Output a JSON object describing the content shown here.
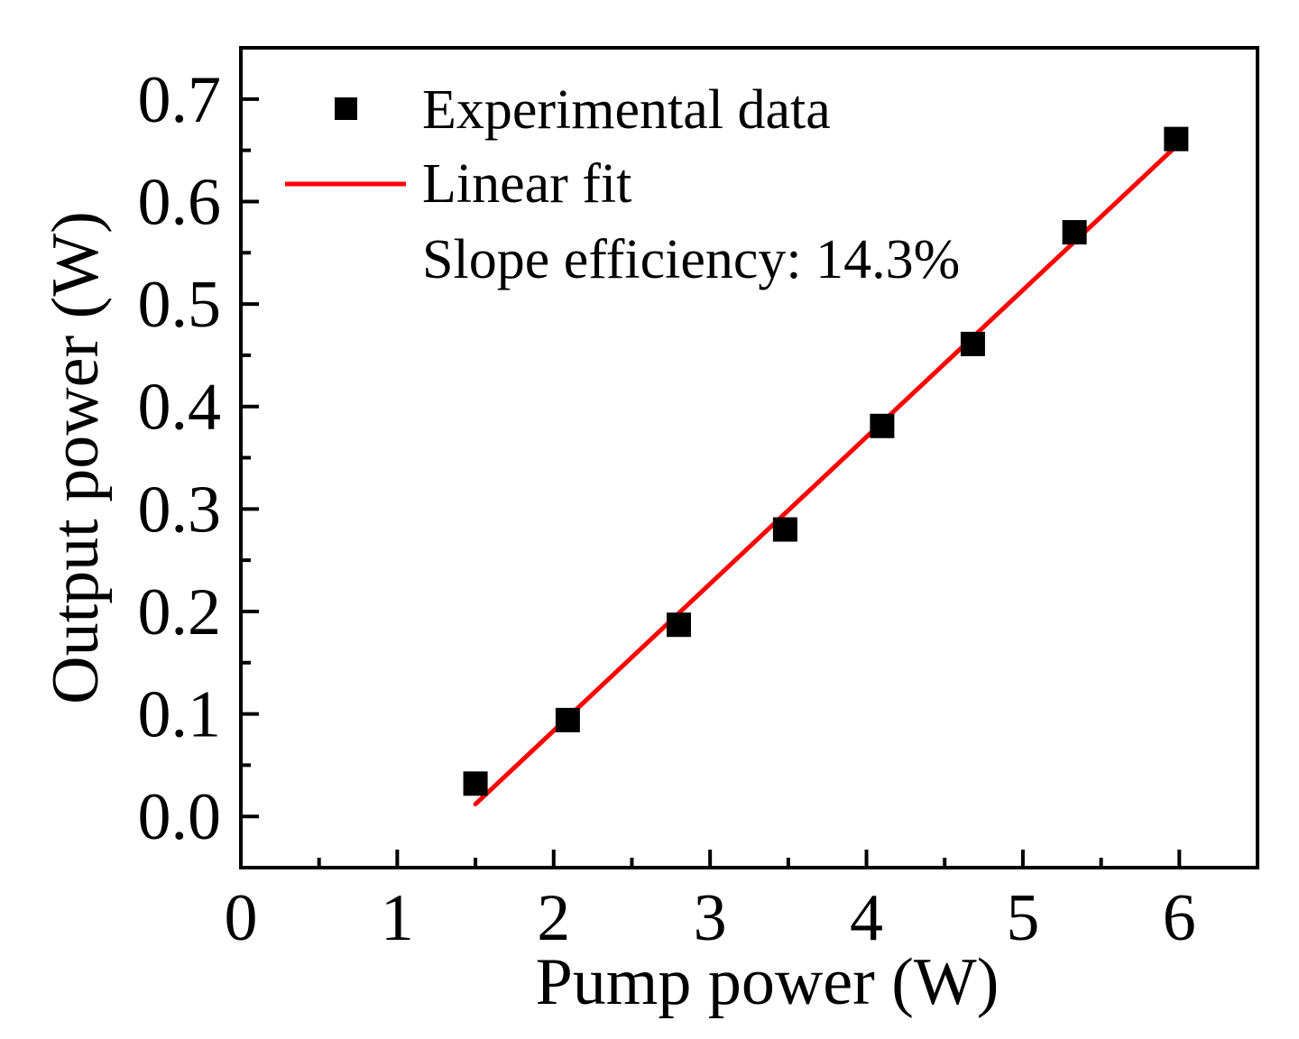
{
  "chart_data": {
    "type": "scatter",
    "title": "",
    "xlabel": "Pump power (W)",
    "ylabel": "Output power (W)",
    "xlim": [
      0,
      6.5
    ],
    "ylim": [
      -0.05,
      0.75
    ],
    "xticks": [
      0,
      1,
      2,
      3,
      4,
      5,
      6
    ],
    "xtick_labels": [
      "0",
      "1",
      "2",
      "3",
      "4",
      "5",
      "6"
    ],
    "yticks": [
      0.0,
      0.1,
      0.2,
      0.3,
      0.4,
      0.5,
      0.6,
      0.7
    ],
    "ytick_labels": [
      "0.0",
      "0.1",
      "0.2",
      "0.3",
      "0.4",
      "0.5",
      "0.6",
      "0.7"
    ],
    "grid": false,
    "legend_position": "top-left",
    "series": [
      {
        "name": "Experimental data",
        "kind": "scatter",
        "marker": "square",
        "color": "#000000",
        "x": [
          1.5,
          2.09,
          2.8,
          3.48,
          4.1,
          4.68,
          5.33,
          5.98
        ],
        "y": [
          0.032,
          0.094,
          0.187,
          0.28,
          0.381,
          0.461,
          0.57,
          0.661
        ]
      },
      {
        "name": "Linear fit",
        "kind": "line",
        "color": "#ff0000",
        "x": [
          1.5,
          5.98
        ],
        "y": [
          0.012,
          0.654
        ]
      }
    ],
    "annotations": [
      {
        "text": "Slope efficiency: 14.3%"
      }
    ]
  }
}
